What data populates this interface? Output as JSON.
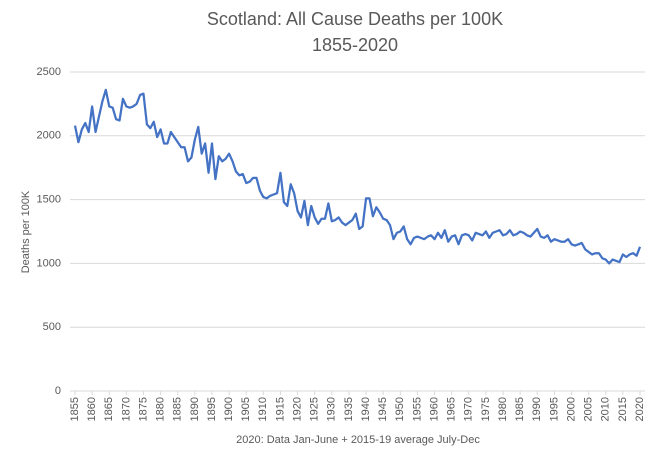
{
  "chart_data": {
    "type": "line",
    "title": "Scotland: All Cause Deaths per 100K",
    "subtitle": "1855-2020",
    "y_label": "Deaths per 100K",
    "x_label": "2020: Data Jan-June + 2015-19 average July-Dec",
    "color": "#4472c4",
    "grid": true,
    "x": [
      1855,
      1856,
      1857,
      1858,
      1859,
      1860,
      1861,
      1862,
      1863,
      1864,
      1865,
      1866,
      1867,
      1868,
      1869,
      1870,
      1871,
      1872,
      1873,
      1874,
      1875,
      1876,
      1877,
      1878,
      1879,
      1880,
      1881,
      1882,
      1883,
      1884,
      1885,
      1886,
      1887,
      1888,
      1889,
      1890,
      1891,
      1892,
      1893,
      1894,
      1895,
      1896,
      1897,
      1898,
      1899,
      1900,
      1901,
      1902,
      1903,
      1904,
      1905,
      1906,
      1907,
      1908,
      1909,
      1910,
      1911,
      1912,
      1913,
      1914,
      1915,
      1916,
      1917,
      1918,
      1919,
      1920,
      1921,
      1922,
      1923,
      1924,
      1925,
      1926,
      1927,
      1928,
      1929,
      1930,
      1931,
      1932,
      1933,
      1934,
      1935,
      1936,
      1937,
      1938,
      1939,
      1940,
      1941,
      1942,
      1943,
      1944,
      1945,
      1946,
      1947,
      1948,
      1949,
      1950,
      1951,
      1952,
      1953,
      1954,
      1955,
      1956,
      1957,
      1958,
      1959,
      1960,
      1961,
      1962,
      1963,
      1964,
      1965,
      1966,
      1967,
      1968,
      1969,
      1970,
      1971,
      1972,
      1973,
      1974,
      1975,
      1976,
      1977,
      1978,
      1979,
      1980,
      1981,
      1982,
      1983,
      1984,
      1985,
      1986,
      1987,
      1988,
      1989,
      1990,
      1991,
      1992,
      1993,
      1994,
      1995,
      1996,
      1997,
      1998,
      1999,
      2000,
      2001,
      2002,
      2003,
      2004,
      2005,
      2006,
      2007,
      2008,
      2009,
      2010,
      2011,
      2012,
      2013,
      2014,
      2015,
      2016,
      2017,
      2018,
      2019,
      2020
    ],
    "values": [
      2080,
      1950,
      2050,
      2100,
      2030,
      2230,
      2030,
      2150,
      2270,
      2360,
      2230,
      2220,
      2130,
      2120,
      2290,
      2230,
      2220,
      2230,
      2250,
      2320,
      2330,
      2090,
      2060,
      2110,
      1990,
      2050,
      1940,
      1940,
      2030,
      1990,
      1950,
      1910,
      1910,
      1800,
      1830,
      1970,
      2070,
      1860,
      1940,
      1710,
      1940,
      1660,
      1840,
      1800,
      1820,
      1860,
      1800,
      1720,
      1690,
      1700,
      1630,
      1640,
      1670,
      1670,
      1570,
      1520,
      1510,
      1530,
      1540,
      1550,
      1710,
      1480,
      1450,
      1620,
      1550,
      1410,
      1360,
      1490,
      1300,
      1450,
      1360,
      1310,
      1350,
      1350,
      1470,
      1330,
      1340,
      1360,
      1320,
      1300,
      1320,
      1340,
      1390,
      1270,
      1290,
      1510,
      1510,
      1370,
      1440,
      1400,
      1350,
      1340,
      1300,
      1190,
      1240,
      1250,
      1290,
      1190,
      1150,
      1200,
      1210,
      1200,
      1190,
      1210,
      1220,
      1190,
      1240,
      1200,
      1260,
      1170,
      1210,
      1220,
      1150,
      1220,
      1230,
      1220,
      1180,
      1240,
      1230,
      1220,
      1250,
      1200,
      1240,
      1250,
      1260,
      1220,
      1230,
      1260,
      1220,
      1230,
      1250,
      1240,
      1220,
      1210,
      1240,
      1270,
      1210,
      1200,
      1220,
      1170,
      1190,
      1180,
      1170,
      1170,
      1190,
      1150,
      1140,
      1150,
      1160,
      1110,
      1090,
      1070,
      1080,
      1080,
      1040,
      1030,
      1000,
      1030,
      1020,
      1010,
      1070,
      1050,
      1070,
      1080,
      1060,
      1130
    ],
    "xlim": [
      1855,
      2020
    ],
    "xticks": [
      1855,
      1860,
      1865,
      1870,
      1875,
      1880,
      1885,
      1890,
      1895,
      1900,
      1905,
      1910,
      1915,
      1920,
      1925,
      1930,
      1935,
      1940,
      1945,
      1950,
      1955,
      1960,
      1965,
      1970,
      1975,
      1980,
      1985,
      1990,
      1995,
      2000,
      2005,
      2010,
      2015,
      2020
    ],
    "ylim": [
      0,
      2500
    ],
    "yticks": [
      0,
      500,
      1000,
      1500,
      2000,
      2500
    ]
  }
}
